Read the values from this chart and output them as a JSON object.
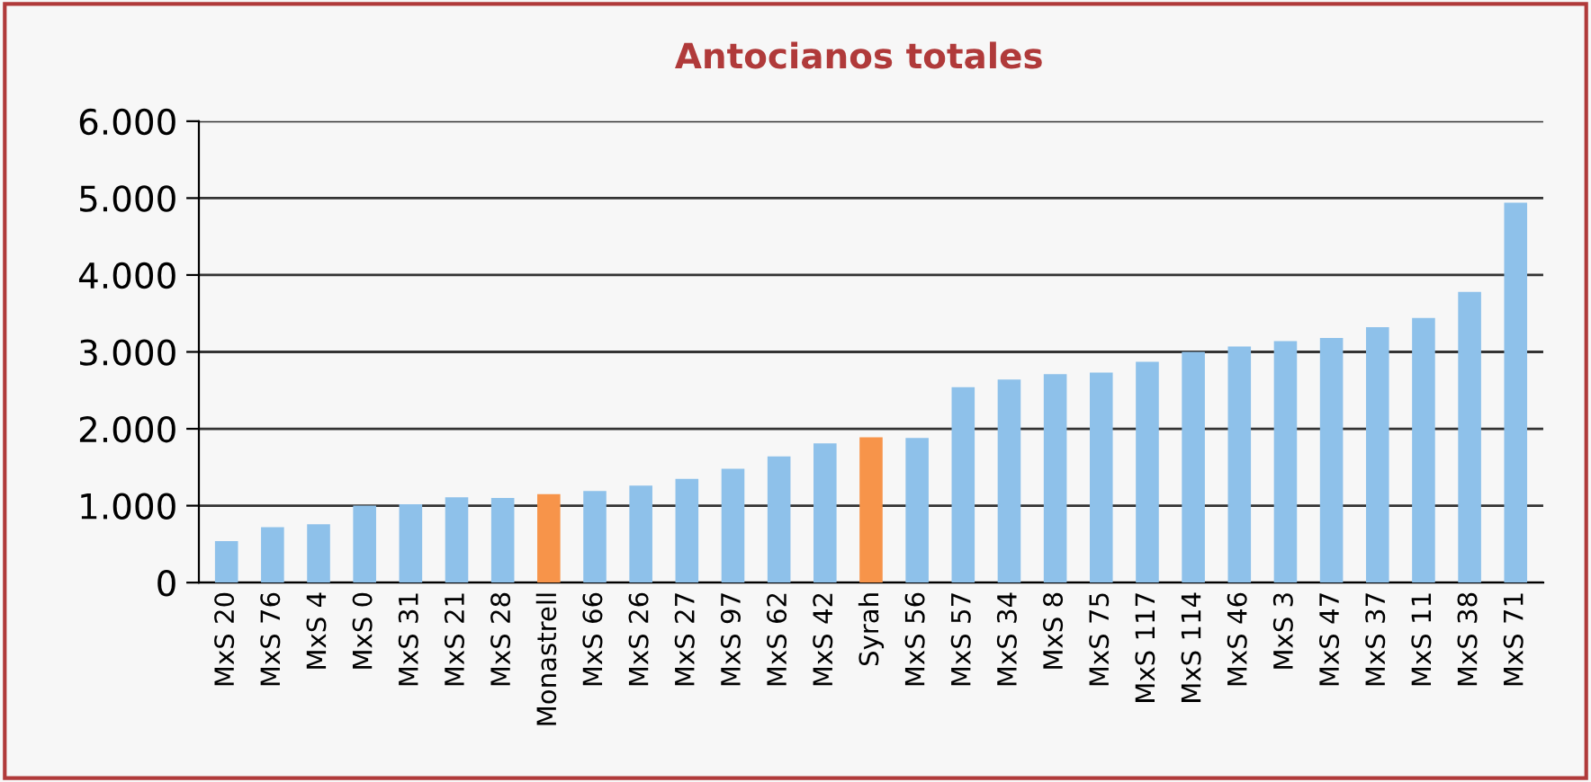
{
  "chart_data": {
    "type": "bar",
    "title": "Antocianos totales",
    "categories": [
      "MxS 20",
      "MxS 76",
      "MxS 4",
      "MxS 0",
      "MxS 31",
      "MxS 21",
      "MxS 28",
      "Monastrell",
      "MxS 66",
      "MxS 26",
      "MxS 27",
      "MxS 97",
      "MxS 62",
      "MxS 42",
      "Syrah",
      "MxS 56",
      "MxS 57",
      "MxS 34",
      "MxS 8",
      "MxS 75",
      "MxS 117",
      "MxS 114",
      "MxS 46",
      "MxS 3",
      "MxS 47",
      "MxS 37",
      "MxS 11",
      "MxS 38",
      "MxS 71"
    ],
    "values": [
      540,
      720,
      760,
      1000,
      1020,
      1110,
      1100,
      1150,
      1190,
      1260,
      1350,
      1480,
      1640,
      1810,
      1890,
      1880,
      2540,
      2640,
      2710,
      2730,
      2870,
      3000,
      3070,
      3140,
      3180,
      3320,
      3440,
      3780,
      4940
    ],
    "colors": [
      "#8ec1ea",
      "#8ec1ea",
      "#8ec1ea",
      "#8ec1ea",
      "#8ec1ea",
      "#8ec1ea",
      "#8ec1ea",
      "#f7944a",
      "#8ec1ea",
      "#8ec1ea",
      "#8ec1ea",
      "#8ec1ea",
      "#8ec1ea",
      "#8ec1ea",
      "#f7944a",
      "#8ec1ea",
      "#8ec1ea",
      "#8ec1ea",
      "#8ec1ea",
      "#8ec1ea",
      "#8ec1ea",
      "#8ec1ea",
      "#8ec1ea",
      "#8ec1ea",
      "#8ec1ea",
      "#8ec1ea",
      "#8ec1ea",
      "#8ec1ea",
      "#8ec1ea"
    ],
    "ylim": [
      0,
      6000
    ],
    "yticks": [
      {
        "value": 0,
        "label": "0"
      },
      {
        "value": 1000,
        "label": "1.000"
      },
      {
        "value": 2000,
        "label": "2.000"
      },
      {
        "value": 3000,
        "label": "3.000"
      },
      {
        "value": 4000,
        "label": "4.000"
      },
      {
        "value": 5000,
        "label": "5.000"
      },
      {
        "value": 6000,
        "label": "6.000"
      }
    ],
    "grid": "y"
  }
}
